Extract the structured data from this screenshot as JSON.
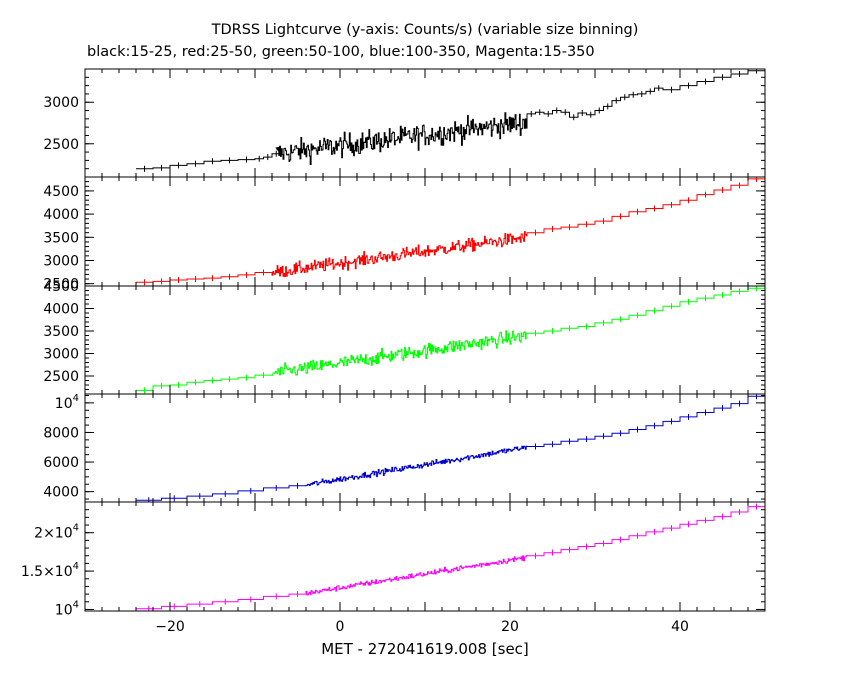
{
  "title": "TDRSS Lightcurve (y-axis: Counts/s) (variable size binning)",
  "subtitle": "black:15-25, red:25-50, green:50-100, blue:100-350, Magenta:15-350",
  "chart_data": {
    "type": "line",
    "xlabel": "MET - 272041619.008 [sec]",
    "xlim": [
      -30,
      50
    ],
    "xticks": [
      -20,
      0,
      20,
      40
    ],
    "panels": [
      {
        "name": "black:15-25",
        "color": "#000000",
        "ylim": [
          2100,
          3400
        ],
        "ytick_labels": [
          {
            "v": 2500,
            "t": "2500"
          },
          {
            "v": 3000,
            "t": "3000"
          }
        ],
        "bins": [
          [
            -24,
            -22,
            2200
          ],
          [
            -22,
            -20,
            2210
          ],
          [
            -20,
            -18,
            2240
          ],
          [
            -18,
            -16,
            2260
          ],
          [
            -16,
            -14,
            2290
          ],
          [
            -14,
            -12,
            2300
          ],
          [
            -12,
            -10,
            2310
          ],
          [
            -10,
            -9,
            2320
          ],
          [
            -9,
            -8,
            2340
          ],
          [
            -8,
            -7,
            2380
          ]
        ],
        "noisy": {
          "x0": -7.5,
          "x1": 22,
          "y0": 2380,
          "y1": 2760,
          "noise": 180,
          "dx": 0.1
        },
        "bins2": [
          [
            22,
            23,
            2860
          ],
          [
            23,
            24,
            2880
          ],
          [
            24,
            25,
            2860
          ],
          [
            25,
            26,
            2900
          ],
          [
            26,
            27,
            2880
          ],
          [
            27,
            28,
            2820
          ],
          [
            28,
            29,
            2870
          ],
          [
            29,
            30,
            2850
          ],
          [
            30,
            31,
            2900
          ],
          [
            31,
            32,
            2950
          ],
          [
            32,
            33,
            3020
          ],
          [
            33,
            34,
            3060
          ],
          [
            34,
            35,
            3090
          ],
          [
            35,
            36,
            3100
          ],
          [
            36,
            37,
            3130
          ],
          [
            37,
            38,
            3170
          ],
          [
            38,
            40,
            3150
          ],
          [
            40,
            42,
            3200
          ],
          [
            42,
            44,
            3250
          ],
          [
            44,
            46,
            3300
          ],
          [
            46,
            48,
            3340
          ],
          [
            48,
            50,
            3380
          ]
        ]
      },
      {
        "name": "red:25-50",
        "color": "#ff0000",
        "ylim": [
          2450,
          4800
        ],
        "ytick_labels": [
          {
            "v": 2500,
            "t": "2500"
          },
          {
            "v": 3000,
            "t": "3000"
          },
          {
            "v": 3500,
            "t": "3500"
          },
          {
            "v": 4000,
            "t": "4000"
          },
          {
            "v": 4500,
            "t": "4500"
          }
        ],
        "bins": [
          [
            -24,
            -22,
            2530
          ],
          [
            -22,
            -20,
            2550
          ],
          [
            -20,
            -18,
            2580
          ],
          [
            -18,
            -16,
            2600
          ],
          [
            -16,
            -14,
            2620
          ],
          [
            -14,
            -12,
            2650
          ],
          [
            -12,
            -10,
            2690
          ],
          [
            -10,
            -8,
            2740
          ]
        ],
        "noisy": {
          "x0": -8,
          "x1": 22,
          "y0": 2740,
          "y1": 3500,
          "noise": 180,
          "dx": 0.1
        },
        "bins2": [
          [
            22,
            24,
            3600
          ],
          [
            24,
            26,
            3680
          ],
          [
            26,
            28,
            3720
          ],
          [
            28,
            30,
            3780
          ],
          [
            30,
            32,
            3850
          ],
          [
            32,
            34,
            3950
          ],
          [
            34,
            36,
            4050
          ],
          [
            36,
            38,
            4120
          ],
          [
            38,
            40,
            4200
          ],
          [
            40,
            42,
            4300
          ],
          [
            42,
            44,
            4420
          ],
          [
            44,
            46,
            4520
          ],
          [
            46,
            48,
            4620
          ],
          [
            48,
            50,
            4760
          ]
        ]
      },
      {
        "name": "green:50-100",
        "color": "#00ff00",
        "ylim": [
          2100,
          4500
        ],
        "ytick_labels": [
          {
            "v": 2500,
            "t": "2500"
          },
          {
            "v": 3000,
            "t": "3000"
          },
          {
            "v": 3500,
            "t": "3500"
          },
          {
            "v": 4000,
            "t": "4000"
          },
          {
            "v": 4500,
            "t": "4500"
          }
        ],
        "bins": [
          [
            -24,
            -22,
            2180
          ],
          [
            -22,
            -20,
            2280
          ],
          [
            -20,
            -18,
            2300
          ],
          [
            -18,
            -16,
            2360
          ],
          [
            -16,
            -14,
            2400
          ],
          [
            -14,
            -12,
            2430
          ],
          [
            -12,
            -10,
            2460
          ],
          [
            -10,
            -8,
            2520
          ]
        ],
        "noisy": {
          "x0": -8,
          "x1": 22,
          "y0": 2560,
          "y1": 3400,
          "noise": 200,
          "dx": 0.1
        },
        "bins2": [
          [
            22,
            24,
            3450
          ],
          [
            24,
            26,
            3500
          ],
          [
            26,
            28,
            3560
          ],
          [
            28,
            30,
            3600
          ],
          [
            30,
            32,
            3680
          ],
          [
            32,
            34,
            3760
          ],
          [
            34,
            36,
            3850
          ],
          [
            36,
            38,
            3950
          ],
          [
            38,
            40,
            4050
          ],
          [
            40,
            42,
            4150
          ],
          [
            42,
            44,
            4230
          ],
          [
            44,
            46,
            4300
          ],
          [
            46,
            48,
            4380
          ],
          [
            48,
            50,
            4450
          ]
        ]
      },
      {
        "name": "blue:100-350",
        "color": "#0000cc",
        "ylim": [
          3300,
          10600
        ],
        "ytick_labels": [
          {
            "v": 4000,
            "t": "4000"
          },
          {
            "v": 6000,
            "t": "6000"
          },
          {
            "v": 8000,
            "t": "8000"
          },
          {
            "v": 10000,
            "t": "10",
            "sup": "4"
          }
        ],
        "bins": [
          [
            -24,
            -21,
            3420
          ],
          [
            -21,
            -18,
            3550
          ],
          [
            -18,
            -15,
            3700
          ],
          [
            -15,
            -12,
            3850
          ],
          [
            -12,
            -9,
            4050
          ],
          [
            -9,
            -6,
            4250
          ],
          [
            -6,
            -4,
            4400
          ]
        ],
        "noisy": {
          "x0": -4,
          "x1": 22,
          "y0": 4450,
          "y1": 7000,
          "noise": 260,
          "dx": 0.1
        },
        "bins2": [
          [
            22,
            24,
            7050
          ],
          [
            24,
            26,
            7200
          ],
          [
            26,
            28,
            7400
          ],
          [
            28,
            30,
            7550
          ],
          [
            30,
            32,
            7750
          ],
          [
            32,
            34,
            7950
          ],
          [
            34,
            36,
            8200
          ],
          [
            36,
            38,
            8450
          ],
          [
            38,
            40,
            8750
          ],
          [
            40,
            42,
            9050
          ],
          [
            42,
            44,
            9350
          ],
          [
            44,
            46,
            9650
          ],
          [
            46,
            48,
            9950
          ],
          [
            48,
            50,
            10450
          ]
        ]
      },
      {
        "name": "Magenta:15-350",
        "color": "#ff00ff",
        "ylim": [
          9800,
          24000
        ],
        "ytick_labels": [
          {
            "v": 10000,
            "t": "10",
            "sup": "4"
          },
          {
            "v": 15000,
            "t": "1.5×10",
            "sup": "4"
          },
          {
            "v": 20000,
            "t": "2×10",
            "sup": "4"
          }
        ],
        "bins": [
          [
            -24,
            -21,
            10100
          ],
          [
            -21,
            -18,
            10400
          ],
          [
            -18,
            -15,
            10700
          ],
          [
            -15,
            -12,
            11000
          ],
          [
            -12,
            -9,
            11300
          ],
          [
            -9,
            -6,
            11700
          ],
          [
            -6,
            -4,
            12000
          ]
        ],
        "noisy": {
          "x0": -4,
          "x1": 22,
          "y0": 12100,
          "y1": 16800,
          "noise": 450,
          "dx": 0.1
        },
        "bins2": [
          [
            22,
            24,
            17000
          ],
          [
            24,
            26,
            17400
          ],
          [
            26,
            28,
            17800
          ],
          [
            28,
            30,
            18200
          ],
          [
            30,
            32,
            18600
          ],
          [
            32,
            34,
            19100
          ],
          [
            34,
            36,
            19600
          ],
          [
            36,
            38,
            20100
          ],
          [
            38,
            40,
            20600
          ],
          [
            40,
            42,
            21100
          ],
          [
            42,
            44,
            21600
          ],
          [
            44,
            46,
            22100
          ],
          [
            46,
            48,
            22700
          ],
          [
            48,
            50,
            23400
          ]
        ]
      }
    ]
  }
}
